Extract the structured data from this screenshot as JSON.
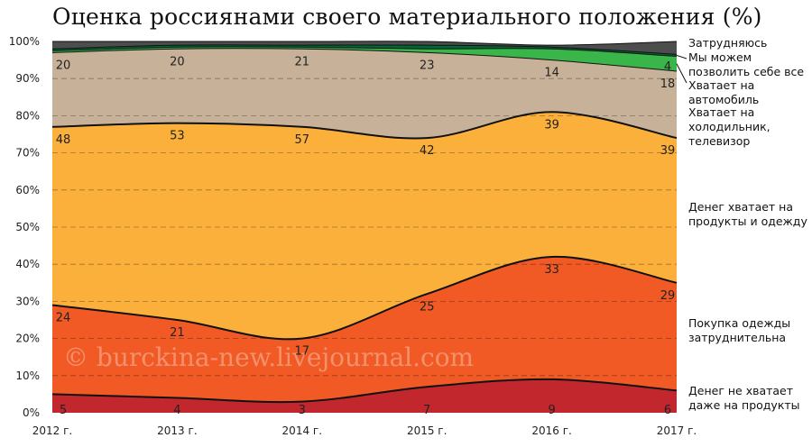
{
  "title": "Оценка россиянами своего материального положения (%)",
  "watermark": "© burckina-new.livejournal.com",
  "chart_data": {
    "type": "area",
    "stacked": true,
    "categories": [
      "2012 г.",
      "2013 г.",
      "2014 г.",
      "2015 г.",
      "2016 г.",
      "2017 г."
    ],
    "ylim": [
      0,
      100
    ],
    "yticks": [
      "0%",
      "10%",
      "20%",
      "30%",
      "40%",
      "50%",
      "60%",
      "70%",
      "80%",
      "90%",
      "100%"
    ],
    "grid": "horizontal-dashed",
    "legend_placement": "right",
    "series": [
      {
        "name": "Денег не хватает даже на продукты",
        "color": "#c1272d",
        "values": [
          5,
          4,
          3,
          7,
          9,
          6
        ],
        "labels": [
          "5",
          "4",
          "3",
          "7",
          "9",
          "6"
        ]
      },
      {
        "name": "Покупка одежды затруднительна",
        "color": "#f15a24",
        "values": [
          24,
          21,
          17,
          25,
          33,
          29
        ],
        "labels": [
          "24",
          "21",
          "17",
          "25",
          "33",
          "29"
        ]
      },
      {
        "name": "Денег хватает на продукты и одежду",
        "color": "#fbb03b",
        "values": [
          48,
          53,
          57,
          42,
          39,
          39
        ],
        "labels": [
          "48",
          "53",
          "57",
          "42",
          "39",
          "39"
        ]
      },
      {
        "name": "Хватает на холодильник, телевизор",
        "color": "#c7b299",
        "values": [
          20,
          20,
          21,
          23,
          14,
          18
        ],
        "labels": [
          "20",
          "20",
          "21",
          "23",
          "14",
          "18"
        ]
      },
      {
        "name": "Хватает на автомобиль",
        "color": "#39b54a",
        "values": [
          0.5,
          0.5,
          0.5,
          1,
          3,
          4
        ],
        "labels": [
          "",
          "",
          "",
          "",
          "",
          "4"
        ]
      },
      {
        "name": "Мы можем позволить себе все",
        "color": "#006837",
        "values": [
          0.5,
          0.5,
          0.5,
          1,
          0.5,
          0.5
        ],
        "labels": [
          "",
          "",
          "",
          "",
          "",
          ""
        ]
      },
      {
        "name": "Затрудняюсь",
        "color": "#4d4d4d",
        "values": [
          2,
          1,
          1,
          1,
          0.5,
          3.5
        ],
        "labels": [
          "",
          "",
          "",
          "",
          "",
          ""
        ]
      }
    ],
    "legend": [
      {
        "lines": [
          "Затрудняюсь"
        ]
      },
      {
        "lines": [
          "Мы можем",
          "позволить себе все"
        ]
      },
      {
        "lines": [
          "Хватает на",
          "автомобиль"
        ]
      },
      {
        "lines": [
          "Хватает на",
          "холодильник,",
          "телевизор"
        ]
      },
      {
        "lines": [
          "Денег хватает на",
          "продукты и одежду"
        ]
      },
      {
        "lines": [
          "Покупка одежды",
          "затруднительна"
        ]
      },
      {
        "lines": [
          "Денег не хватает",
          "даже на продукты"
        ]
      }
    ]
  }
}
